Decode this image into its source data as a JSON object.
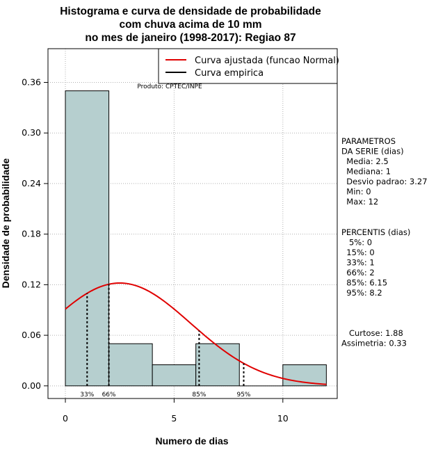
{
  "chart_data": {
    "type": "bar",
    "title_lines": [
      "Histograma e curva de densidade de probabilidade",
      "com chuva acima de 10 mm",
      "no mes de janeiro (1998-2017): Regiao 87"
    ],
    "xlabel": "Numero de dias",
    "ylabel": "Densidade de probabilidade",
    "xlim": [
      -0.8,
      12.5
    ],
    "ylim": [
      -0.015,
      0.4
    ],
    "x_ticks": [
      0,
      5,
      10
    ],
    "y_ticks": [
      0.0,
      0.06,
      0.12,
      0.18,
      0.24,
      0.3,
      0.36
    ],
    "y_tick_labels": [
      "0.00",
      "0.06",
      "0.12",
      "0.18",
      "0.24",
      "0.30",
      "0.36"
    ],
    "grid": true,
    "bins": [
      {
        "x0": 0,
        "x1": 2,
        "density": 0.35
      },
      {
        "x0": 2,
        "x1": 4,
        "density": 0.05
      },
      {
        "x0": 4,
        "x1": 6,
        "density": 0.025
      },
      {
        "x0": 6,
        "x1": 8,
        "density": 0.05
      },
      {
        "x0": 8,
        "x1": 10,
        "density": 0.0
      },
      {
        "x0": 10,
        "x1": 12,
        "density": 0.025
      }
    ],
    "bar_color": "#b6cfcf",
    "normal_curve": {
      "mean": 2.5,
      "sd": 3.27,
      "x_from": 0,
      "x_to": 12,
      "color": "#e00000"
    },
    "percentile_markers": [
      {
        "x": 1,
        "label": "33%"
      },
      {
        "x": 2,
        "label": "66%"
      },
      {
        "x": 6.15,
        "label": "85%"
      },
      {
        "x": 8.2,
        "label": "95%"
      }
    ],
    "legend": {
      "position": "top-right",
      "entries": [
        {
          "label": "Curva ajustada (funcao Normal)",
          "color": "#e00000"
        },
        {
          "label": "Curva empirica",
          "color": "#000000"
        }
      ]
    },
    "credit": "Produto: CPTEC/INPE"
  },
  "side_panel": {
    "parametros_lines": [
      "PARAMETROS",
      "DA SERIE (dias)",
      "  Media: 2.5",
      "  Mediana: 1",
      "  Desvio padrao: 3.27",
      "  Min: 0",
      "  Max: 12"
    ],
    "percentis_lines": [
      "PERCENTIS (dias)",
      "   5%: 0",
      "  15%: 0",
      "  33%: 1",
      "  66%: 2",
      "  85%: 6.15",
      "  95%: 8.2"
    ],
    "shape_lines": [
      "   Curtose: 1.88",
      "Assimetria: 0.33"
    ]
  }
}
